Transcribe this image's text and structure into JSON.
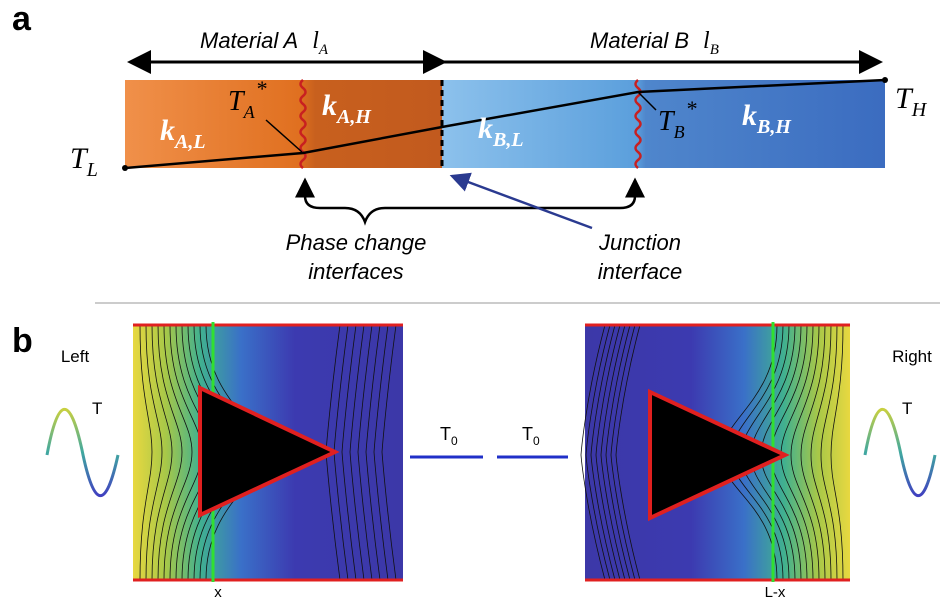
{
  "panel_a": {
    "label": "a",
    "material_a": {
      "name": "Material A",
      "length": {
        "main": "l",
        "sub": "A"
      }
    },
    "material_b": {
      "name": "Material B",
      "length": {
        "main": "l",
        "sub": "B"
      }
    },
    "t_low": {
      "main": "T",
      "sub": "L"
    },
    "t_high": {
      "main": "T",
      "sub": "H"
    },
    "t_a_star": {
      "main": "T",
      "sub": "A",
      "sup": "*"
    },
    "t_b_star": {
      "main": "T",
      "sub": "B",
      "sup": "*"
    },
    "k_a_l": {
      "main": "k",
      "sub": "A,L"
    },
    "k_a_h": {
      "main": "k",
      "sub": "A,H"
    },
    "k_b_l": {
      "main": "k",
      "sub": "B,L"
    },
    "k_b_h": {
      "main": "k",
      "sub": "B,H"
    },
    "phase_change_label": [
      "Phase change",
      "interfaces"
    ],
    "junction_label": [
      "Junction",
      "interface"
    ]
  },
  "panel_b": {
    "label": "b",
    "left_label": "Left",
    "right_label": "Right",
    "left_wave_label": "T",
    "right_wave_label": "T",
    "t0_left": {
      "main": "T",
      "sub": "0"
    },
    "t0_right": {
      "main": "T",
      "sub": "0"
    },
    "x_left": "x",
    "x_right": "L-x"
  }
}
